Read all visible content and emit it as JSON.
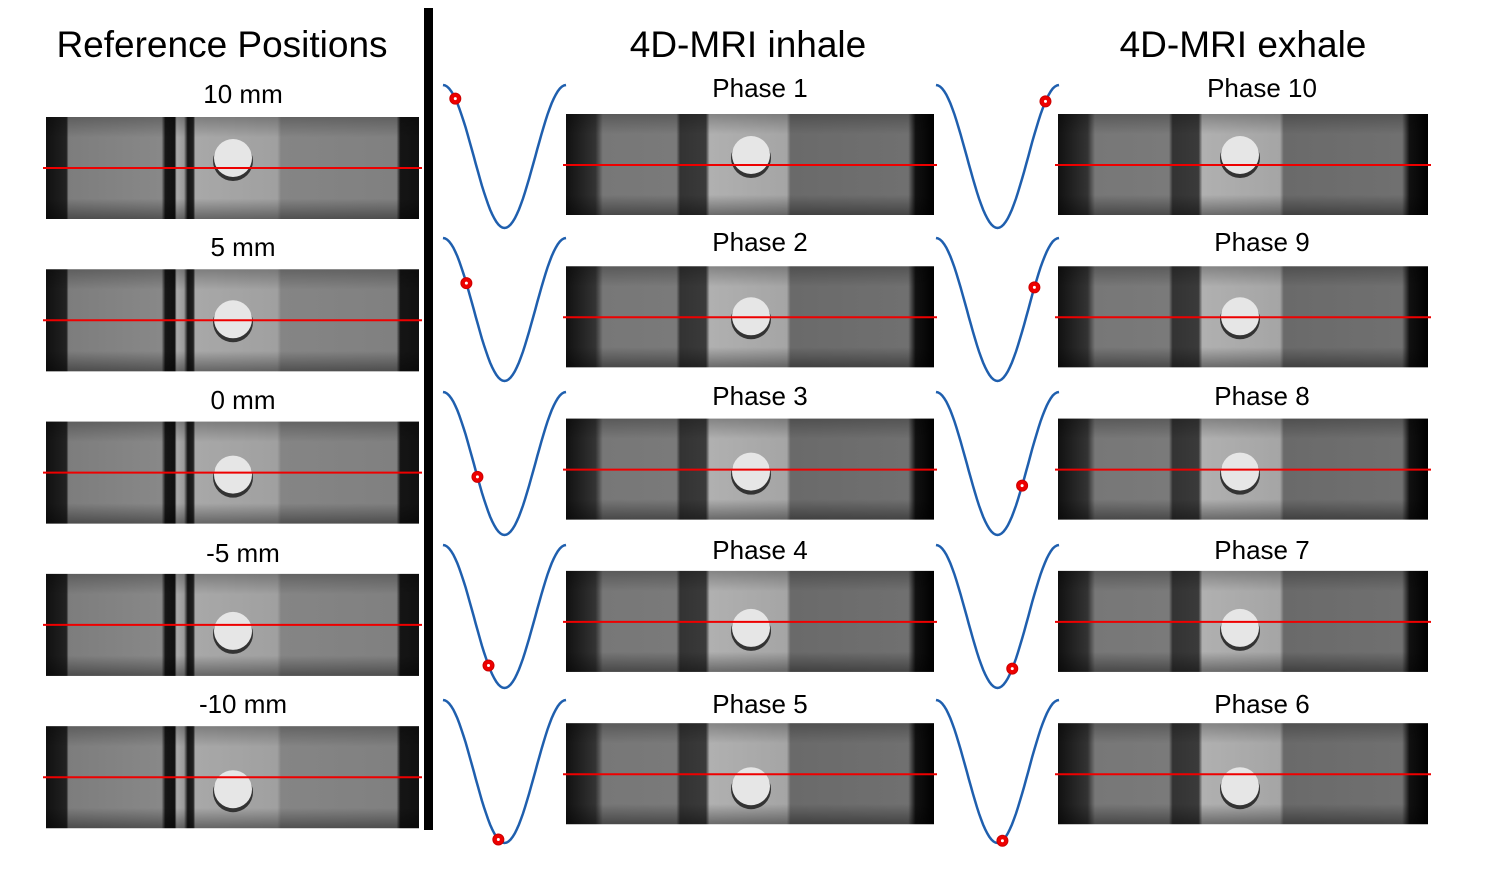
{
  "reference": {
    "title": "Reference Positions",
    "labels": [
      "10 mm",
      "5 mm",
      "0 mm",
      "-5 mm",
      "-10 mm"
    ]
  },
  "inhale": {
    "title": "4D-MRI inhale",
    "labels": [
      "Phase 1",
      "Phase 2",
      "Phase 3",
      "Phase 4",
      "Phase 5"
    ]
  },
  "exhale": {
    "title": "4D-MRI exhale",
    "labels": [
      "Phase 10",
      "Phase 9",
      "Phase 8",
      "Phase 7",
      "Phase 6"
    ]
  }
}
